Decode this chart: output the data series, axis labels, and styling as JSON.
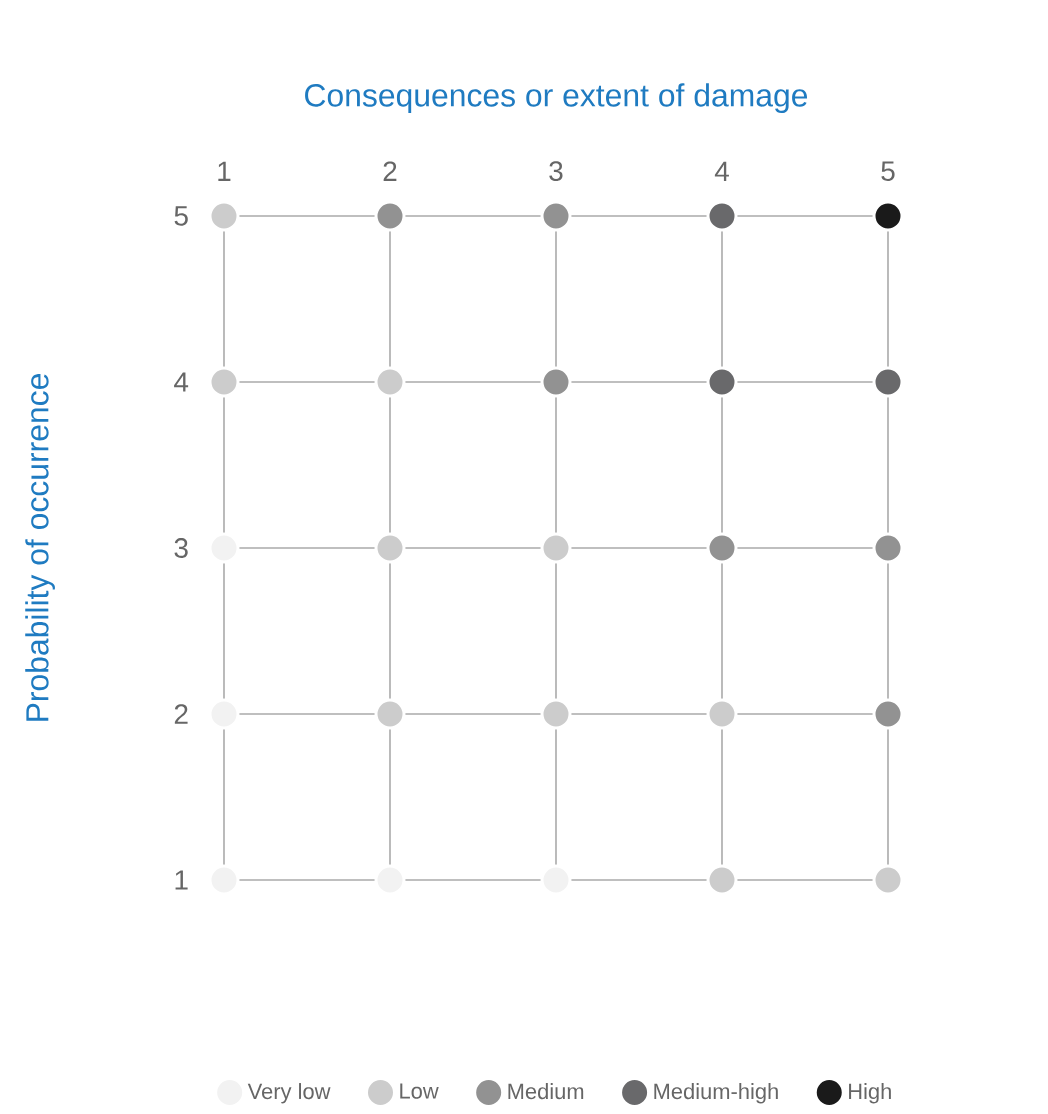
{
  "chart_data": {
    "type": "scatter",
    "xlabel": "Consequences or extent of damage",
    "ylabel": "Probability of occurrence",
    "xlim": [
      1,
      5
    ],
    "ylim": [
      1,
      5
    ],
    "xticks": [
      1,
      2,
      3,
      4,
      5
    ],
    "yticks": [
      1,
      2,
      3,
      4,
      5
    ],
    "grid": true,
    "legend": "bottom",
    "series": [
      {
        "name": "Very low",
        "color": "#f2f2f2",
        "x": [
          1,
          1,
          1,
          2,
          3
        ],
        "values": [
          3,
          2,
          1,
          1,
          1
        ]
      },
      {
        "name": "Low",
        "color": "#cccccc",
        "x": [
          1,
          1,
          2,
          2,
          3,
          2,
          3,
          4,
          4,
          5
        ],
        "values": [
          5,
          4,
          4,
          3,
          3,
          2,
          2,
          2,
          1,
          1
        ]
      },
      {
        "name": "Medium",
        "color": "#929292",
        "x": [
          2,
          3,
          3,
          4,
          5,
          5
        ],
        "values": [
          5,
          5,
          4,
          3,
          3,
          2
        ]
      },
      {
        "name": "Medium-high",
        "color": "#69696b",
        "x": [
          4,
          4,
          5
        ],
        "values": [
          5,
          4,
          4
        ]
      },
      {
        "name": "High",
        "color": "#1a1a1a",
        "x": [
          5
        ],
        "values": [
          5
        ]
      }
    ]
  }
}
